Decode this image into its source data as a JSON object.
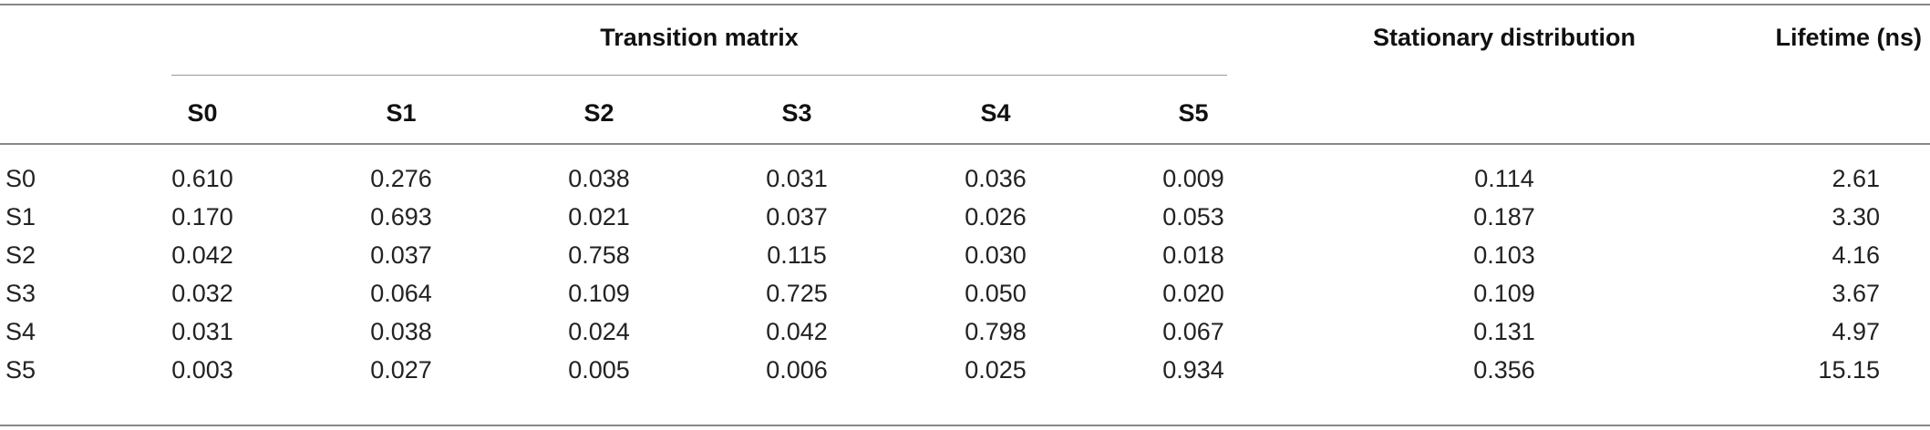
{
  "table": {
    "group_header": "Transition matrix",
    "stationary_header": "Stationary distribution",
    "lifetime_header": "Lifetime (ns)",
    "state_columns": [
      "S0",
      "S1",
      "S2",
      "S3",
      "S4",
      "S5"
    ],
    "rows": [
      {
        "label": "S0",
        "values": [
          "0.610",
          "0.276",
          "0.038",
          "0.031",
          "0.036",
          "0.009"
        ],
        "stationary": "0.114",
        "lifetime": "2.61"
      },
      {
        "label": "S1",
        "values": [
          "0.170",
          "0.693",
          "0.021",
          "0.037",
          "0.026",
          "0.053"
        ],
        "stationary": "0.187",
        "lifetime": "3.30"
      },
      {
        "label": "S2",
        "values": [
          "0.042",
          "0.037",
          "0.758",
          "0.115",
          "0.030",
          "0.018"
        ],
        "stationary": "0.103",
        "lifetime": "4.16"
      },
      {
        "label": "S3",
        "values": [
          "0.032",
          "0.064",
          "0.109",
          "0.725",
          "0.050",
          "0.020"
        ],
        "stationary": "0.109",
        "lifetime": "3.67"
      },
      {
        "label": "S4",
        "values": [
          "0.031",
          "0.038",
          "0.024",
          "0.042",
          "0.798",
          "0.067"
        ],
        "stationary": "0.131",
        "lifetime": "4.97"
      },
      {
        "label": "S5",
        "values": [
          "0.003",
          "0.027",
          "0.005",
          "0.006",
          "0.025",
          "0.934"
        ],
        "stationary": "0.356",
        "lifetime": "15.15"
      }
    ]
  }
}
